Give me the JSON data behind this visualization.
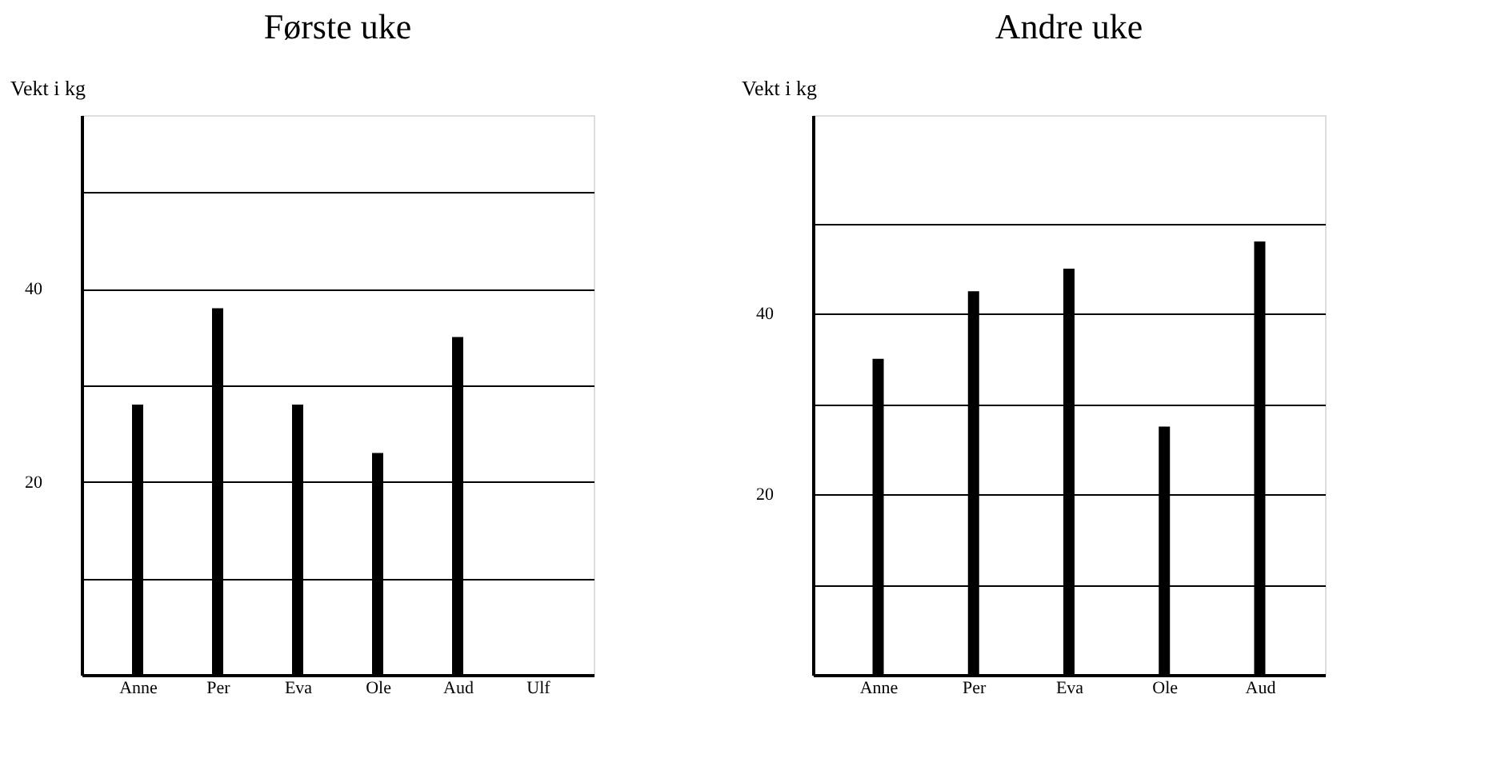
{
  "chart_data": [
    {
      "type": "bar",
      "title": "Første uke",
      "ylabel": "Vekt i kg",
      "categories": [
        "Anne",
        "Per",
        "Eva",
        "Ole",
        "Aud",
        "Ulf"
      ],
      "values": [
        28,
        38,
        28,
        23,
        35,
        null
      ],
      "color": "#000000",
      "ylim": [
        0,
        58
      ],
      "yticks": [
        {
          "value": 10,
          "label": null
        },
        20,
        {
          "value": 30,
          "label": null
        },
        40,
        {
          "value": 50,
          "label": null
        }
      ],
      "grid": "y"
    },
    {
      "type": "bar",
      "title": "Andre uke",
      "ylabel": "Vekt i kg",
      "categories": [
        "Anne",
        "Per",
        "Eva",
        "Ole",
        "Aud"
      ],
      "values": [
        35,
        42.5,
        45,
        27.5,
        48
      ],
      "color": "#000000",
      "ylim": [
        0,
        62
      ],
      "yticks": [
        {
          "value": 10,
          "label": null
        },
        20,
        {
          "value": 30,
          "label": null
        },
        40,
        {
          "value": 50,
          "label": null
        }
      ],
      "grid": "y"
    }
  ]
}
